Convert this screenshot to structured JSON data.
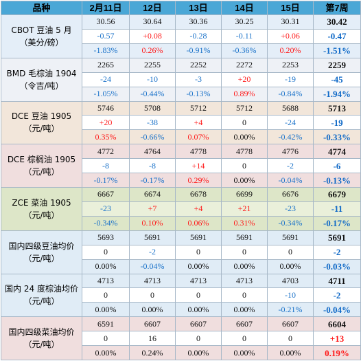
{
  "header": [
    "品种",
    "2月11日",
    "12日",
    "13日",
    "14日",
    "15日",
    "第7周"
  ],
  "groups": [
    {
      "name": [
        "CBOT 豆油 5 月",
        "（美分/磅）"
      ],
      "rows": [
        {
          "cells": [
            "30.56",
            "30.64",
            "30.36",
            "30.25",
            "30.31"
          ],
          "colors": [
            "dark",
            "dark",
            "dark",
            "dark",
            "dark"
          ],
          "week": "30.42",
          "wcolor": "dark"
        },
        {
          "cells": [
            "-0.57",
            "+0.08",
            "-0.28",
            "-0.11",
            "+0.06"
          ],
          "colors": [
            "blue",
            "red",
            "blue",
            "blue",
            "red"
          ],
          "week": "-0.47",
          "wcolor": "blue"
        },
        {
          "cells": [
            "-1.83%",
            "0.26%",
            "-0.91%",
            "-0.36%",
            "0.20%"
          ],
          "colors": [
            "blue",
            "red",
            "blue",
            "blue",
            "red"
          ],
          "week": "-1.51%",
          "wcolor": "blue"
        }
      ]
    },
    {
      "name": [
        "BMD 毛棕油 1904",
        "（令吉/吨）"
      ],
      "rows": [
        {
          "cells": [
            "2265",
            "2255",
            "2252",
            "2272",
            "2253"
          ],
          "colors": [
            "dark",
            "dark",
            "dark",
            "dark",
            "dark"
          ],
          "week": "2259",
          "wcolor": "dark"
        },
        {
          "cells": [
            "-24",
            "-10",
            "-3",
            "+20",
            "-19"
          ],
          "colors": [
            "blue",
            "blue",
            "blue",
            "red",
            "blue"
          ],
          "week": "-45",
          "wcolor": "blue"
        },
        {
          "cells": [
            "-1.05%",
            "-0.44%",
            "-0.13%",
            "0.89%",
            "-0.84%"
          ],
          "colors": [
            "blue",
            "blue",
            "blue",
            "red",
            "blue"
          ],
          "week": "-1.94%",
          "wcolor": "blue"
        }
      ]
    },
    {
      "name": [
        "DCE 豆油 1905",
        "（元/吨）"
      ],
      "rows": [
        {
          "cells": [
            "5746",
            "5708",
            "5712",
            "5712",
            "5688"
          ],
          "colors": [
            "dark",
            "dark",
            "dark",
            "dark",
            "dark"
          ],
          "week": "5713",
          "wcolor": "dark"
        },
        {
          "cells": [
            "+20",
            "-38",
            "+4",
            "0",
            "-24"
          ],
          "colors": [
            "red",
            "blue",
            "red",
            "dark",
            "blue"
          ],
          "week": "-19",
          "wcolor": "blue"
        },
        {
          "cells": [
            "0.35%",
            "-0.66%",
            "0.07%",
            "0.00%",
            "-0.42%"
          ],
          "colors": [
            "red",
            "blue",
            "red",
            "dark",
            "blue"
          ],
          "week": "-0.33%",
          "wcolor": "blue"
        }
      ]
    },
    {
      "name": [
        "DCE 棕榈油 1905",
        "（元/吨）"
      ],
      "rows": [
        {
          "cells": [
            "4772",
            "4764",
            "4778",
            "4778",
            "4776"
          ],
          "colors": [
            "dark",
            "dark",
            "dark",
            "dark",
            "dark"
          ],
          "week": "4774",
          "wcolor": "dark"
        },
        {
          "cells": [
            "-8",
            "-8",
            "+14",
            "0",
            "-2"
          ],
          "colors": [
            "blue",
            "blue",
            "red",
            "dark",
            "blue"
          ],
          "week": "-6",
          "wcolor": "blue"
        },
        {
          "cells": [
            "-0.17%",
            "-0.17%",
            "0.29%",
            "0.00%",
            "-0.04%"
          ],
          "colors": [
            "blue",
            "blue",
            "red",
            "dark",
            "blue"
          ],
          "week": "-0.13%",
          "wcolor": "blue"
        }
      ]
    },
    {
      "name": [
        "ZCE 菜油 1905",
        "（元/吨）"
      ],
      "rows": [
        {
          "cells": [
            "6667",
            "6674",
            "6678",
            "6699",
            "6676"
          ],
          "colors": [
            "dark",
            "dark",
            "dark",
            "dark",
            "dark"
          ],
          "week": "6679",
          "wcolor": "dark"
        },
        {
          "cells": [
            "-23",
            "+7",
            "+4",
            "+21",
            "-23"
          ],
          "colors": [
            "blue",
            "red",
            "red",
            "red",
            "blue"
          ],
          "week": "-11",
          "wcolor": "blue"
        },
        {
          "cells": [
            "-0.34%",
            "0.10%",
            "0.06%",
            "0.31%",
            "-0.34%"
          ],
          "colors": [
            "blue",
            "red",
            "red",
            "red",
            "blue"
          ],
          "week": "-0.17%",
          "wcolor": "blue"
        }
      ]
    },
    {
      "name": [
        "国内四级豆油均价",
        "（元/吨）"
      ],
      "rows": [
        {
          "cells": [
            "5693",
            "5691",
            "5691",
            "5691",
            "5691"
          ],
          "colors": [
            "dark",
            "dark",
            "dark",
            "dark",
            "dark"
          ],
          "week": "5691",
          "wcolor": "dark"
        },
        {
          "cells": [
            "0",
            "-2",
            "0",
            "0",
            "0"
          ],
          "colors": [
            "dark",
            "blue",
            "dark",
            "dark",
            "dark"
          ],
          "week": "-2",
          "wcolor": "blue"
        },
        {
          "cells": [
            "0.00%",
            "-0.04%",
            "0.00%",
            "0.00%",
            "0.00%"
          ],
          "colors": [
            "dark",
            "blue",
            "dark",
            "dark",
            "dark"
          ],
          "week": "-0.03%",
          "wcolor": "blue"
        }
      ]
    },
    {
      "name": [
        "国内 24 度棕油均价",
        "（元/吨）"
      ],
      "rows": [
        {
          "cells": [
            "4713",
            "4713",
            "4713",
            "4713",
            "4703"
          ],
          "colors": [
            "dark",
            "dark",
            "dark",
            "dark",
            "dark"
          ],
          "week": "4711",
          "wcolor": "dark"
        },
        {
          "cells": [
            "0",
            "0",
            "0",
            "0",
            "-10"
          ],
          "colors": [
            "dark",
            "dark",
            "dark",
            "dark",
            "blue"
          ],
          "week": "-2",
          "wcolor": "blue"
        },
        {
          "cells": [
            "0.00%",
            "0.00%",
            "0.00%",
            "0.00%",
            "-0.21%"
          ],
          "colors": [
            "dark",
            "dark",
            "dark",
            "dark",
            "blue"
          ],
          "week": "-0.04%",
          "wcolor": "blue"
        }
      ]
    },
    {
      "name": [
        "国内四级菜油均价",
        "（元/吨）"
      ],
      "rows": [
        {
          "cells": [
            "6591",
            "6607",
            "6607",
            "6607",
            "6607"
          ],
          "colors": [
            "dark",
            "dark",
            "dark",
            "dark",
            "dark"
          ],
          "week": "6604",
          "wcolor": "dark"
        },
        {
          "cells": [
            "0",
            "16",
            "0",
            "0",
            "0"
          ],
          "colors": [
            "dark",
            "dark",
            "dark",
            "dark",
            "dark"
          ],
          "week": "+13",
          "wcolor": "red"
        },
        {
          "cells": [
            "0.00%",
            "0.24%",
            "0.00%",
            "0.00%",
            "0.00%"
          ],
          "colors": [
            "dark",
            "dark",
            "dark",
            "dark",
            "dark"
          ],
          "week": "0.19%",
          "wcolor": "red"
        }
      ]
    }
  ],
  "colors": {
    "header_bg": "#4aa7d6",
    "up": "#ff1a1a",
    "down": "#1a72c9"
  }
}
